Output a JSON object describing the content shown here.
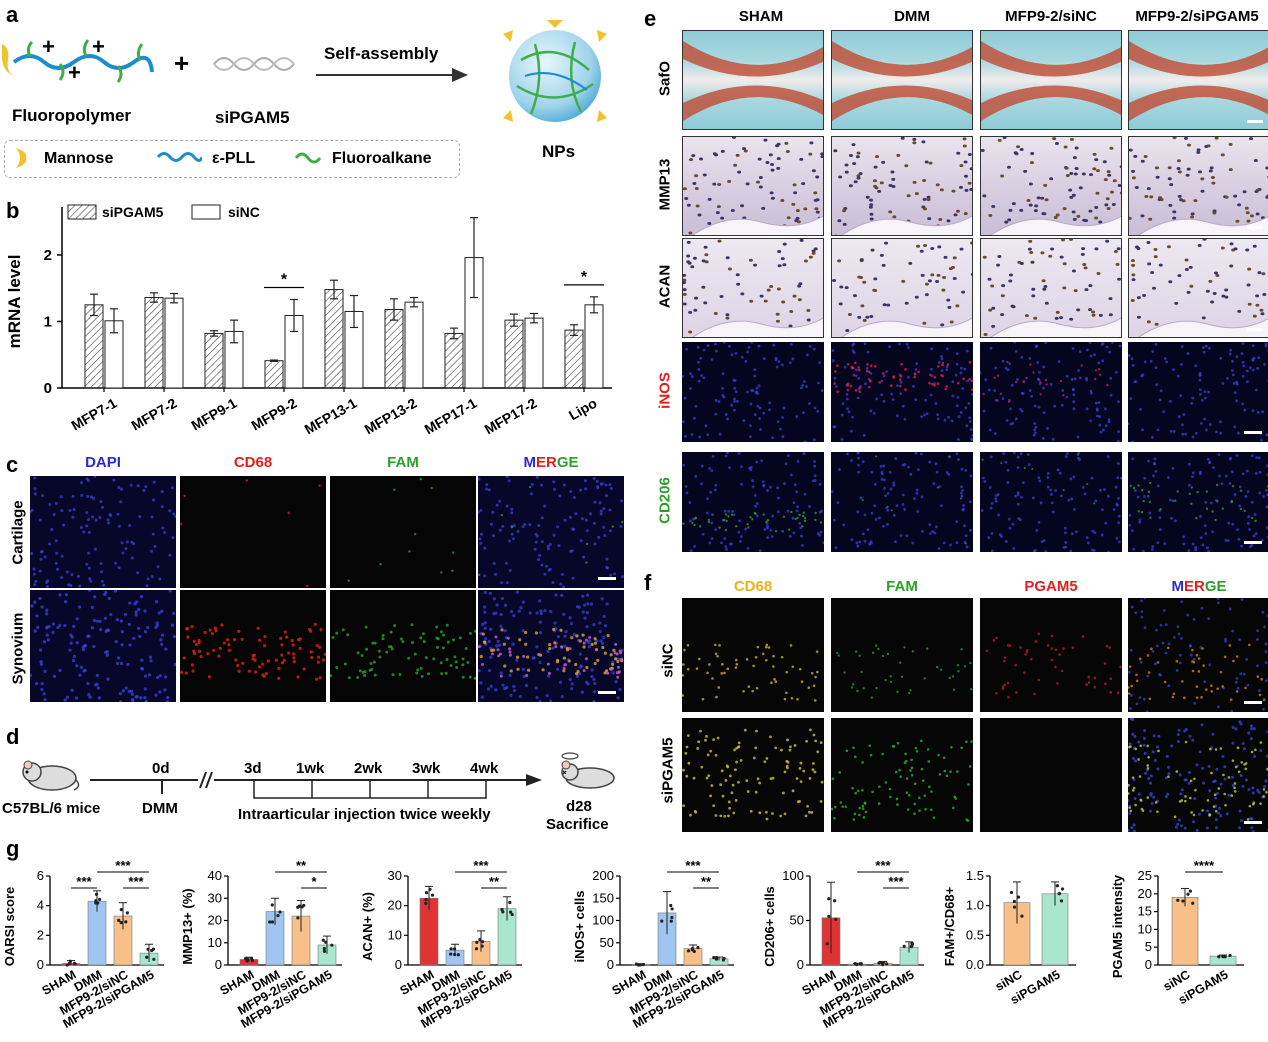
{
  "panels": {
    "a": "a",
    "b": "b",
    "c": "c",
    "d": "d",
    "e": "e",
    "f": "f",
    "g": "g"
  },
  "panel_a": {
    "fluoropolymer": "Fluoropolymer",
    "sirna": "siPGAM5",
    "arrow_label": "Self-assembly",
    "product": "NPs",
    "plus": "+",
    "legend": [
      {
        "name": "Mannose",
        "color": "#f2c12e"
      },
      {
        "name": "ε-PLL",
        "color": "#1d8ccf"
      },
      {
        "name": "Fluoroalkane",
        "color": "#3fae49"
      }
    ]
  },
  "chart_data": [
    {
      "type": "bar",
      "panel": "b",
      "ylabel": "mRNA level",
      "ylim": [
        0,
        2.6
      ],
      "yticks": [
        0,
        1,
        2
      ],
      "categories": [
        "MFP7-1",
        "MFP7-2",
        "MFP9-1",
        "MFP9-2",
        "MFP13-1",
        "MFP13-2",
        "MFP17-1",
        "MFP17-2",
        "Lipo"
      ],
      "series": [
        {
          "name": "siPGAM5",
          "values": [
            1.25,
            1.36,
            0.82,
            0.41,
            1.48,
            1.18,
            0.82,
            1.02,
            0.87
          ],
          "errors": [
            0.16,
            0.07,
            0.04,
            0.01,
            0.14,
            0.16,
            0.08,
            0.09,
            0.08
          ]
        },
        {
          "name": "siNC",
          "values": [
            1.01,
            1.35,
            0.85,
            1.09,
            1.15,
            1.29,
            1.96,
            1.05,
            1.25
          ],
          "errors": [
            0.18,
            0.07,
            0.17,
            0.24,
            0.24,
            0.07,
            0.6,
            0.07,
            0.12
          ]
        }
      ],
      "significance": [
        {
          "category": "MFP9-2",
          "label": "*"
        },
        {
          "category": "Lipo",
          "label": "*"
        }
      ]
    },
    {
      "type": "bar",
      "panel": "g",
      "ylabel": "OARSI score",
      "ylim": [
        0,
        6
      ],
      "yticks": [
        0,
        2,
        4,
        6
      ],
      "categories": [
        "SHAM",
        "DMM",
        "MFP9-2/siNC",
        "MFP9-2/siPGAM5"
      ],
      "values": [
        0.1,
        4.3,
        3.3,
        0.8
      ],
      "errors": [
        0.2,
        0.7,
        0.9,
        0.6
      ],
      "colors": [
        "#e03434",
        "#9ec6f0",
        "#f7c088",
        "#a8e6cf"
      ],
      "significance": [
        "***",
        "***",
        "***"
      ]
    },
    {
      "type": "bar",
      "panel": "g",
      "ylabel": "MMP13+ (%)",
      "ylim": [
        0,
        40
      ],
      "yticks": [
        0,
        10,
        20,
        30,
        40
      ],
      "categories": [
        "SHAM",
        "DMM",
        "MFP9-2/siNC",
        "MFP9-2/siPGAM5"
      ],
      "values": [
        2.5,
        24,
        22,
        9
      ],
      "errors": [
        1,
        6,
        7,
        4
      ],
      "colors": [
        "#e03434",
        "#9ec6f0",
        "#f7c088",
        "#a8e6cf"
      ],
      "significance": [
        "**",
        "*"
      ]
    },
    {
      "type": "bar",
      "panel": "g",
      "ylabel": "ACAN+ (%)",
      "ylim": [
        0,
        30
      ],
      "yticks": [
        0,
        10,
        20,
        30
      ],
      "categories": [
        "SHAM",
        "DMM",
        "MFP9-2/siNC",
        "MFP9-2/siPGAM5"
      ],
      "values": [
        22.5,
        5,
        8,
        19
      ],
      "errors": [
        4,
        2,
        3.5,
        4
      ],
      "colors": [
        "#e03434",
        "#9ec6f0",
        "#f7c088",
        "#a8e6cf"
      ],
      "significance": [
        "***",
        "**"
      ]
    },
    {
      "type": "bar",
      "panel": "g",
      "ylabel": "iNOS+ cells",
      "ylim": [
        0,
        200
      ],
      "yticks": [
        0,
        50,
        100,
        150,
        200
      ],
      "categories": [
        "SHAM",
        "DMM",
        "MFP9-2/siNC",
        "MFP9-2/siPGAM5"
      ],
      "values": [
        1,
        117,
        37,
        14
      ],
      "errors": [
        2,
        48,
        8,
        4
      ],
      "colors": [
        "#e03434",
        "#9ec6f0",
        "#f7c088",
        "#a8e6cf"
      ],
      "significance": [
        "***",
        "**"
      ]
    },
    {
      "type": "bar",
      "panel": "g",
      "ylabel": "CD206+ cells",
      "ylim": [
        0,
        100
      ],
      "yticks": [
        0,
        50,
        100
      ],
      "categories": [
        "SHAM",
        "DMM",
        "MFP9-2/siNC",
        "MFP9-2/siPGAM5"
      ],
      "values": [
        53,
        1,
        2,
        20
      ],
      "errors": [
        40,
        1,
        2,
        6
      ],
      "colors": [
        "#e03434",
        "#9ec6f0",
        "#f7c088",
        "#a8e6cf"
      ],
      "significance": [
        "***",
        "***"
      ]
    },
    {
      "type": "bar",
      "panel": "g",
      "ylabel": "FAM+/CD68+",
      "ylim": [
        0,
        1.5
      ],
      "yticks": [
        0,
        0.5,
        1.0,
        1.5
      ],
      "categories": [
        "siNC",
        "siPGAM5"
      ],
      "values": [
        1.05,
        1.2
      ],
      "errors": [
        0.35,
        0.2
      ],
      "colors": [
        "#f7c088",
        "#a8e6cf"
      ],
      "significance": []
    },
    {
      "type": "bar",
      "panel": "g",
      "ylabel": "PGAM5 intensity",
      "ylim": [
        0,
        25
      ],
      "yticks": [
        0,
        5,
        10,
        15,
        20,
        25
      ],
      "categories": [
        "siNC",
        "siPGAM5"
      ],
      "values": [
        19,
        2.5
      ],
      "errors": [
        2.5,
        0.3
      ],
      "colors": [
        "#f7c088",
        "#a8e6cf"
      ],
      "significance": [
        "****"
      ]
    }
  ],
  "panel_c": {
    "columns": [
      "DAPI",
      "CD68",
      "FAM",
      "MERGE"
    ],
    "column_colors": [
      "#2b2bd0",
      "#e02020",
      "#2aa02a",
      "multi"
    ],
    "rows": [
      "Cartilage",
      "Synovium"
    ],
    "merge_letters": [
      {
        "t": "M",
        "c": "#2b2bd0"
      },
      {
        "t": "ER",
        "c": "#e02020"
      },
      {
        "t": "GE",
        "c": "#2aa02a"
      }
    ]
  },
  "panel_d": {
    "mice": "C57BL/6 mice",
    "timepoints": [
      "0d",
      "3d",
      "1wk",
      "2wk",
      "3wk",
      "4wk"
    ],
    "dmm": "DMM",
    "injection": "Intraarticular injection twice weekly",
    "end_day": "d28",
    "end_label": "Sacrifice"
  },
  "panel_e": {
    "columns": [
      "SHAM",
      "DMM",
      "MFP9-2/siNC",
      "MFP9-2/siPGAM5"
    ],
    "rows": [
      "SafO",
      "MMP13",
      "ACAN",
      "iNOS",
      "CD206"
    ],
    "row_colors": [
      "#000000",
      "#000000",
      "#000000",
      "#e02020",
      "#2aa02a"
    ]
  },
  "panel_f": {
    "columns": [
      "CD68",
      "FAM",
      "PGAM5",
      "MERGE"
    ],
    "column_colors": [
      "#e8b020",
      "#2aa02a",
      "#e02020",
      "multi"
    ],
    "rows": [
      "siNC",
      "siPGAM5"
    ],
    "merge_letters": [
      {
        "t": "M",
        "c": "#2b2bd0"
      },
      {
        "t": "ER",
        "c": "#e02020"
      },
      {
        "t": "GE",
        "c": "#2aa02a"
      }
    ]
  }
}
